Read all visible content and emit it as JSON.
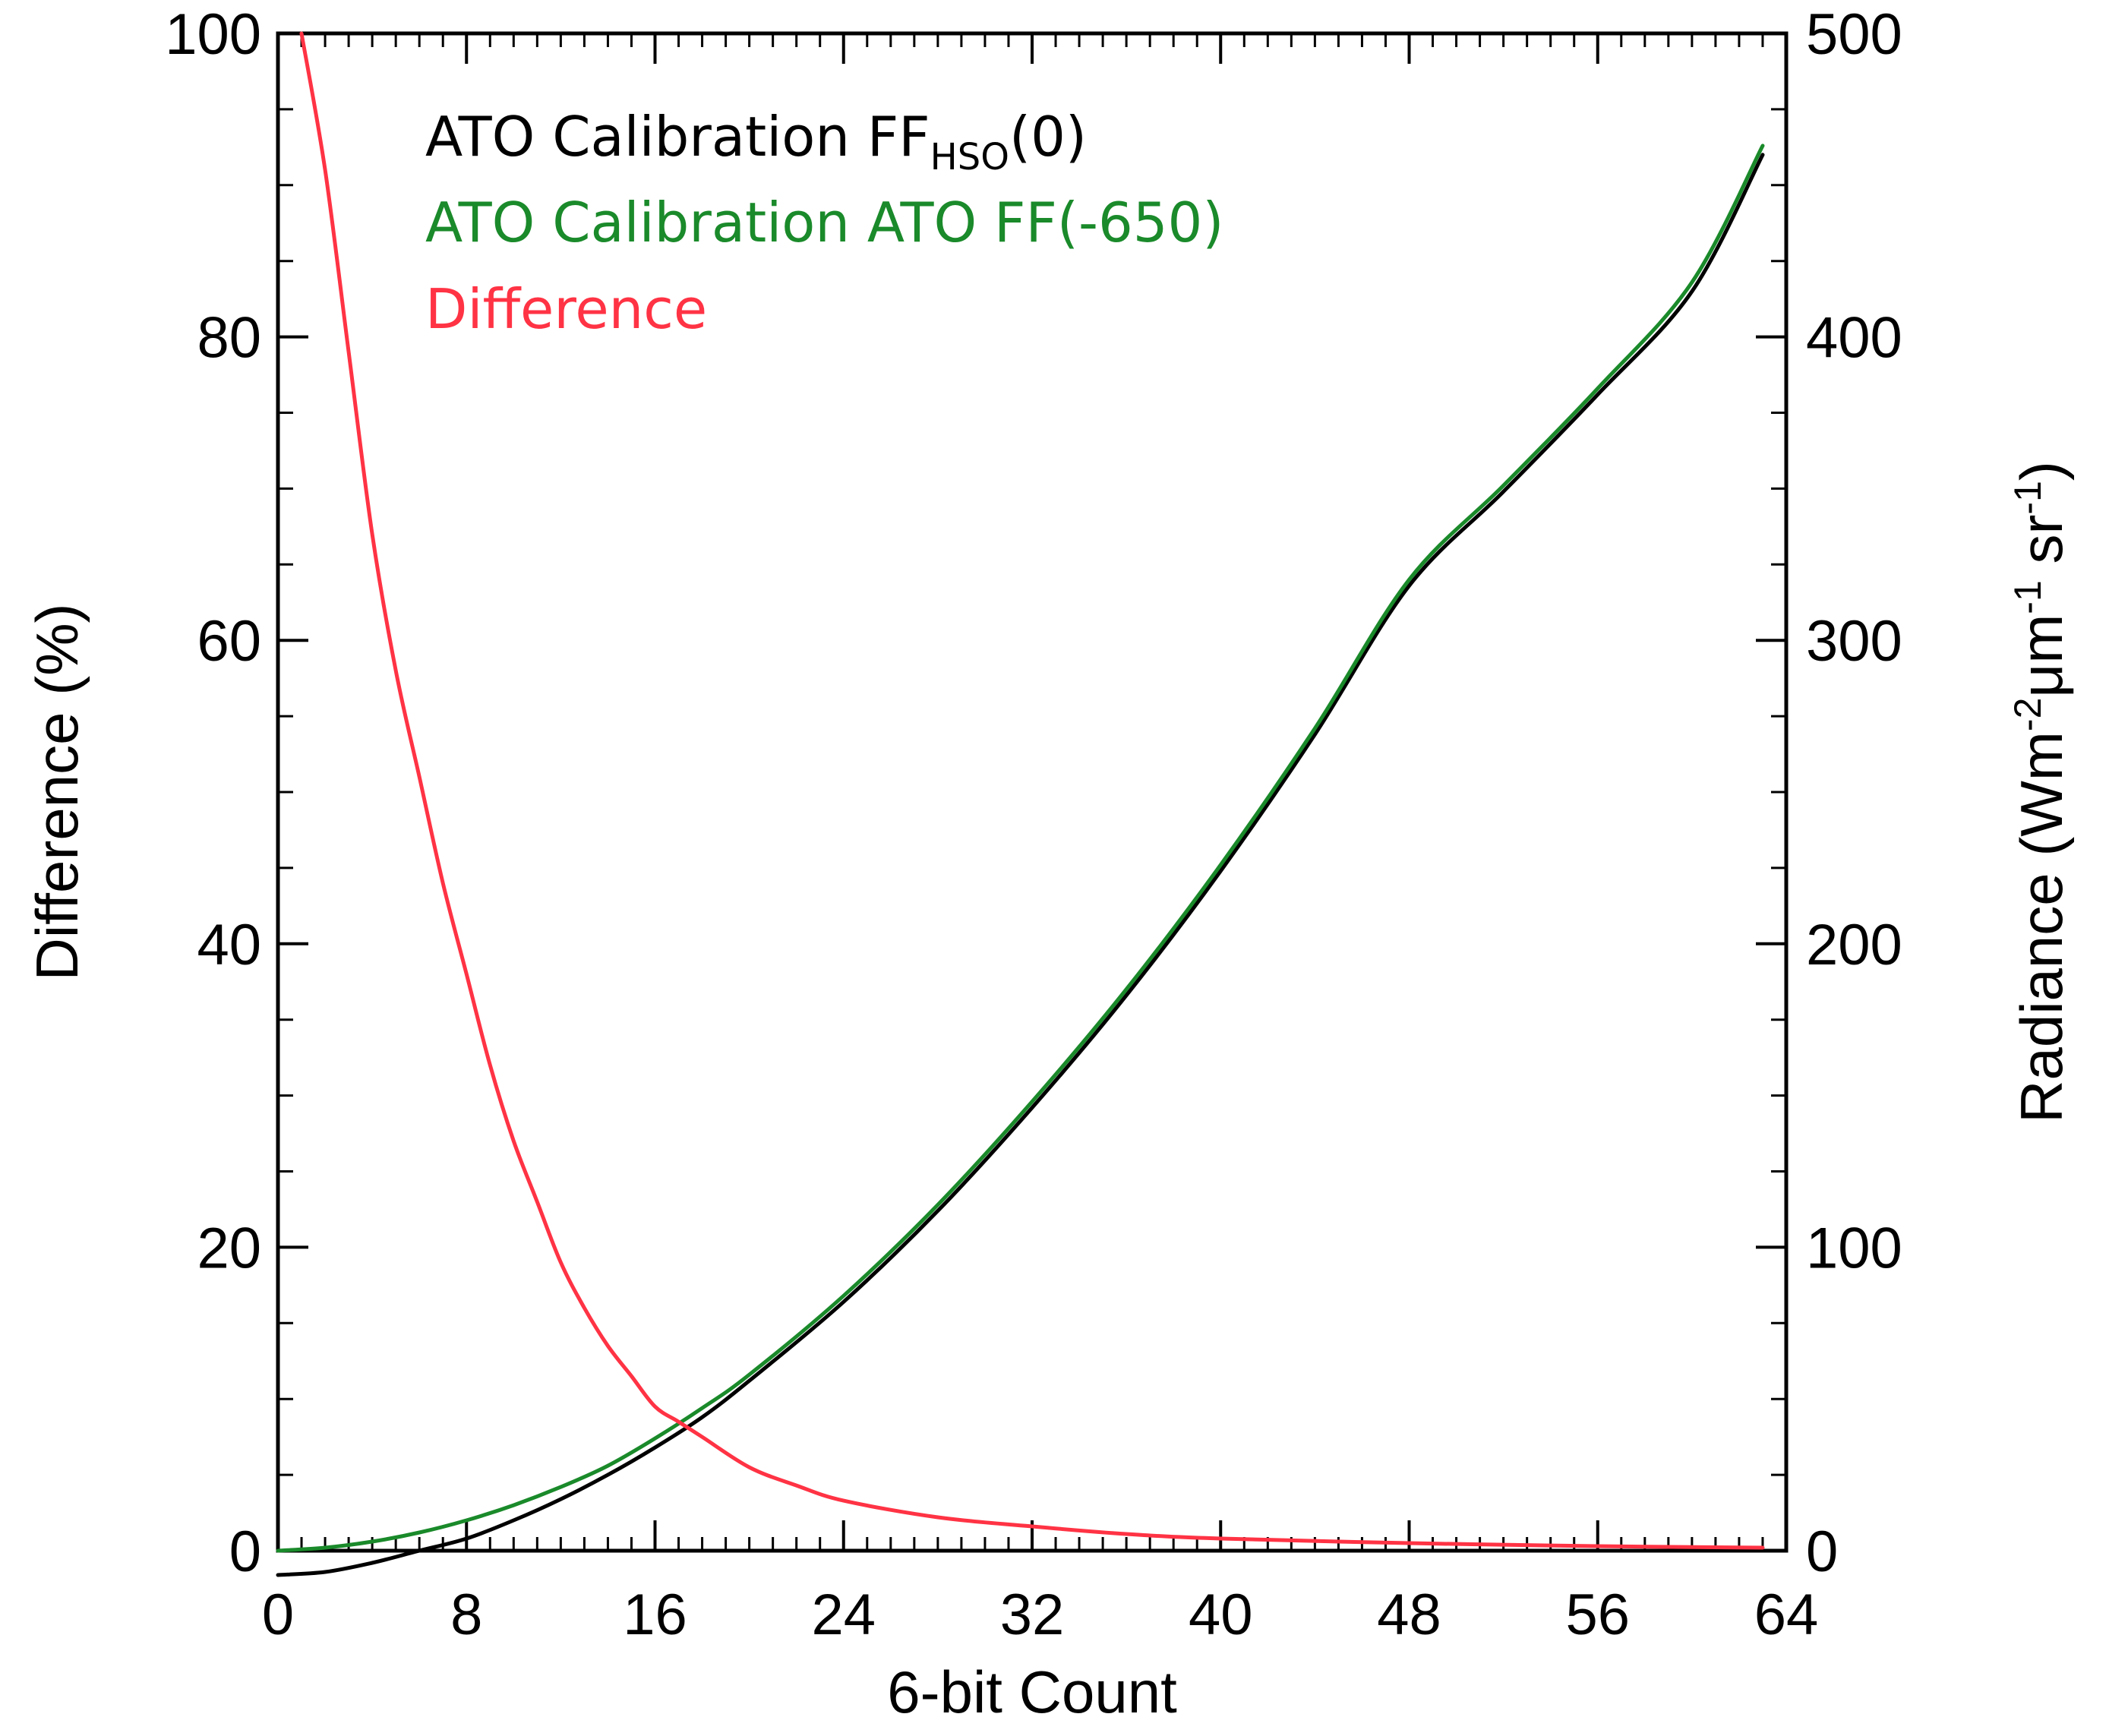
{
  "chart_data": {
    "type": "line",
    "x": {
      "label": "6-bit Count",
      "range": [
        0,
        64
      ],
      "ticks": [
        0,
        8,
        16,
        24,
        32,
        40,
        48,
        56,
        64
      ],
      "tick_labels": [
        "0",
        "8",
        "16",
        "24",
        "32",
        "40",
        "48",
        "56",
        "64"
      ]
    },
    "y_left": {
      "label": "Difference (%)",
      "range": [
        0,
        100
      ],
      "ticks": [
        0,
        20,
        40,
        60,
        80,
        100
      ],
      "tick_labels": [
        "0",
        "20",
        "40",
        "60",
        "80",
        "100"
      ]
    },
    "y_right": {
      "label": "Radiance (Wm",
      "label_sup1": "-2",
      "label_mid": "μm",
      "label_sup2": "-1",
      "label_mid2": " sr",
      "label_sup3": "-1",
      "label_end": ")",
      "range": [
        0,
        500
      ],
      "ticks": [
        0,
        100,
        200,
        300,
        400,
        500
      ],
      "tick_labels": [
        "0",
        "100",
        "200",
        "300",
        "400",
        "500"
      ]
    },
    "legend": {
      "line1_main": "ATO Calibration FF",
      "line1_sub": "HSO",
      "line1_end": "(0)",
      "line2": "ATO Calibration ATO FF(-650)",
      "line3": "Difference"
    },
    "colors": {
      "hso": "#000000",
      "ato": "#1a8a2a",
      "difference": "#ff3344"
    },
    "series": [
      {
        "name": "ATO Calibration FF_HSO(0)",
        "axis": "right",
        "x": [
          0,
          2,
          4,
          6,
          8,
          10,
          12,
          14,
          16,
          18,
          20,
          24,
          28,
          32,
          36,
          40,
          44,
          48,
          52,
          56,
          60,
          63
        ],
        "values": [
          -8,
          -7,
          -4,
          0,
          4,
          10,
          17,
          25,
          34,
          44,
          56,
          82,
          112,
          146,
          183,
          224,
          269,
          318,
          349,
          381,
          415,
          460
        ]
      },
      {
        "name": "ATO Calibration ATO FF(-650)",
        "axis": "right",
        "x": [
          0,
          2,
          4,
          6,
          8,
          10,
          12,
          14,
          16,
          18,
          20,
          24,
          28,
          32,
          36,
          40,
          44,
          48,
          52,
          56,
          60,
          63
        ],
        "values": [
          0,
          1,
          3,
          6,
          10,
          15,
          21,
          28,
          37,
          47,
          58,
          84,
          114,
          148,
          185,
          226,
          271,
          320,
          351,
          383,
          418,
          463
        ]
      },
      {
        "name": "Difference",
        "axis": "left",
        "x": [
          1,
          2,
          3,
          4,
          5,
          6,
          7,
          8,
          9,
          10,
          11,
          12,
          13,
          14,
          15,
          16,
          17,
          18,
          20,
          22,
          24,
          28,
          32,
          36,
          40,
          48,
          56,
          63
        ],
        "values": [
          100,
          91,
          79,
          67,
          58,
          51,
          44,
          38,
          32,
          27,
          23,
          19,
          16,
          13.5,
          11.5,
          9.5,
          8.5,
          7.5,
          5.5,
          4.3,
          3.3,
          2.2,
          1.6,
          1.1,
          0.8,
          0.5,
          0.3,
          0.2
        ]
      }
    ]
  }
}
